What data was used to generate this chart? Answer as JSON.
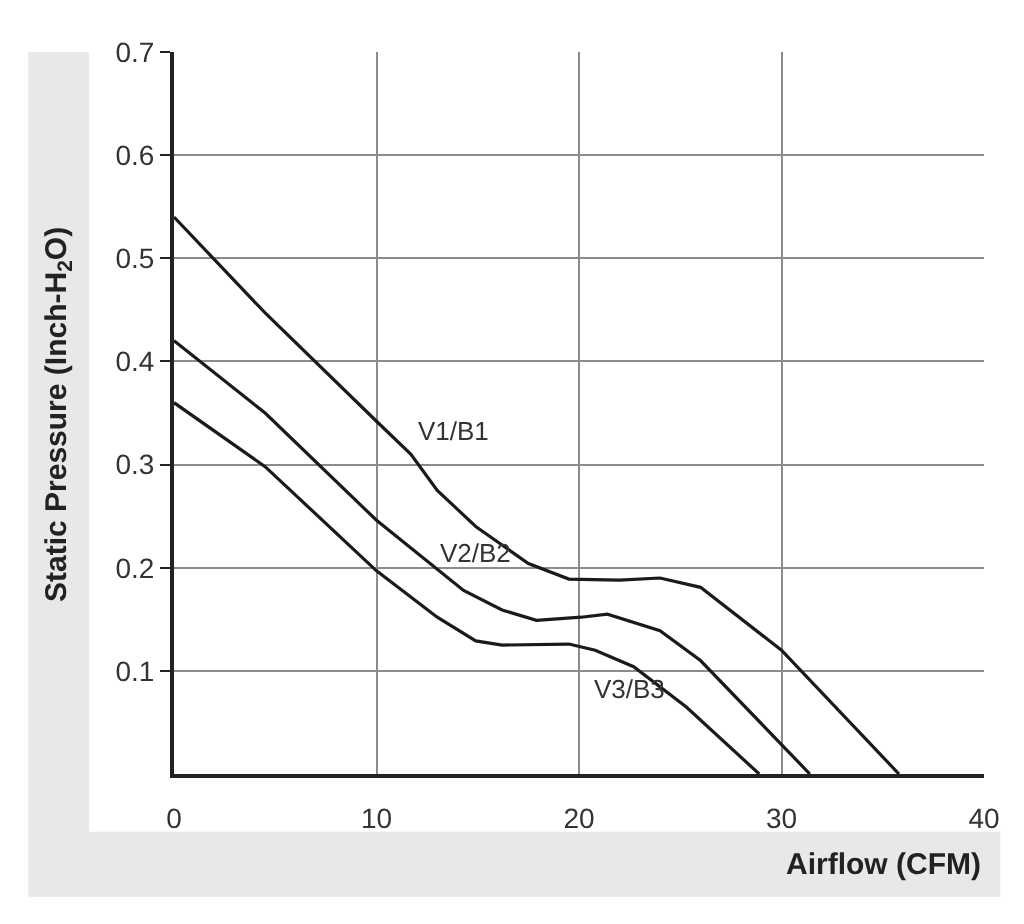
{
  "chart_data": {
    "type": "line",
    "xlabel": "Airflow (CFM)",
    "ylabel": "Static Pressure (Inch-H$_{2}$O)",
    "series": [
      {
        "color": "#1a1a1a",
        "x": [
          0,
          4.5,
          10,
          11.7,
          13,
          14.9,
          17.5,
          19.5,
          22,
          24,
          26,
          30,
          35.8
        ],
        "values": [
          0.54,
          0.447,
          0.342,
          0.31,
          0.275,
          0.24,
          0.204,
          0.189,
          0.188,
          0.19,
          0.181,
          0.12,
          0
        ]
      },
      {
        "color": "#1a1a1a",
        "x": [
          0,
          4.5,
          10,
          14.3,
          16.2,
          17.9,
          20.1,
          21.4,
          24,
          26,
          31.4
        ],
        "values": [
          0.42,
          0.35,
          0.246,
          0.178,
          0.159,
          0.149,
          0.152,
          0.155,
          0.139,
          0.11,
          0
        ]
      },
      {
        "color": "#1a1a1a",
        "x": [
          0,
          4.5,
          10,
          13,
          14.9,
          16.2,
          19.5,
          20.8,
          22.7,
          25.3,
          28.9
        ],
        "values": [
          0.36,
          0.298,
          0.197,
          0.152,
          0.129,
          0.125,
          0.126,
          0.12,
          0.104,
          0.065,
          0
        ]
      }
    ],
    "annotations": [
      {
        "text": "V1/B1",
        "x": 11.7,
        "y": 0.31
      },
      {
        "text": "V2/B2",
        "x": 14.3,
        "y": 0.178
      },
      {
        "text": "V3/B3",
        "x": 22.7,
        "y": 0.104
      }
    ],
    "xlim": [
      0,
      40
    ],
    "xticks": [
      0,
      10,
      20,
      30,
      40
    ],
    "ylim": [
      0,
      0.7
    ],
    "yticks": [
      0.1,
      0.2,
      0.3,
      0.4,
      0.5,
      0.6,
      0.7
    ],
    "grid": true,
    "marker": "none",
    "line_style": "solid"
  }
}
